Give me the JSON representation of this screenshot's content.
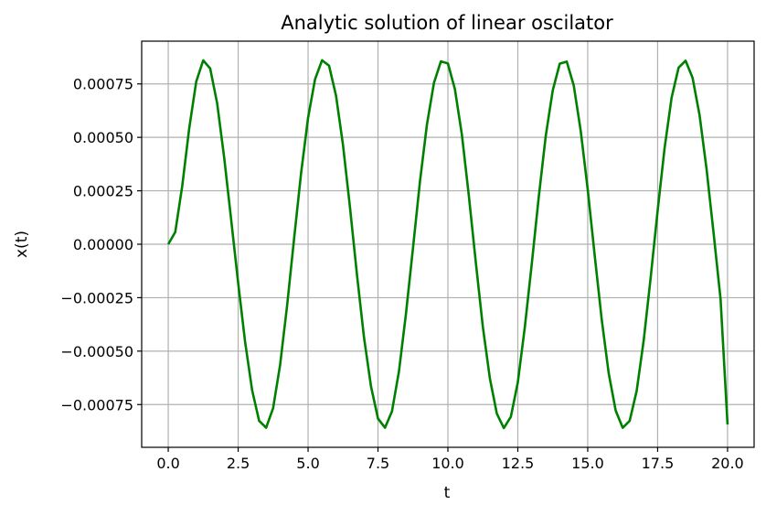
{
  "chart_data": {
    "type": "line",
    "title": "Analytic solution of linear oscilator",
    "xlabel": "t",
    "ylabel": "x(t)",
    "xlim": [
      -0.95,
      20.95
    ],
    "ylim": [
      -0.00095,
      0.00095
    ],
    "xticks": [
      0.0,
      2.5,
      5.0,
      7.5,
      10.0,
      12.5,
      15.0,
      17.5,
      20.0
    ],
    "xtick_labels": [
      "0.0",
      "2.5",
      "5.0",
      "7.5",
      "10.0",
      "12.5",
      "15.0",
      "17.5",
      "20.0"
    ],
    "yticks": [
      0.00075,
      0.0005,
      0.00025,
      0.0,
      -0.00025,
      -0.0005,
      -0.00075
    ],
    "ytick_labels": [
      "0.00075",
      "0.00050",
      "0.00025",
      "0.00000",
      "−0.00025",
      "−0.00050",
      "−0.00075"
    ],
    "grid": true,
    "series": [
      {
        "color": "#008000",
        "x": [
          0.0,
          0.25,
          0.5,
          0.75,
          1.0,
          1.25,
          1.5,
          1.75,
          2.0,
          2.25,
          2.5,
          2.75,
          3.0,
          3.25,
          3.5,
          3.75,
          4.0,
          4.25,
          4.5,
          4.75,
          5.0,
          5.25,
          5.5,
          5.75,
          6.0,
          6.25,
          6.5,
          6.75,
          7.0,
          7.25,
          7.5,
          7.75,
          8.0,
          8.25,
          8.5,
          8.75,
          9.0,
          9.25,
          9.5,
          9.75,
          10.0,
          10.25,
          10.5,
          10.75,
          11.0,
          11.25,
          11.5,
          11.75,
          12.0,
          12.25,
          12.5,
          12.75,
          13.0,
          13.25,
          13.5,
          13.75,
          14.0,
          14.25,
          14.5,
          14.75,
          15.0,
          15.25,
          15.5,
          15.75,
          16.0,
          16.25,
          16.5,
          16.75,
          17.0,
          17.25,
          17.5,
          17.75,
          18.0,
          18.25,
          18.5,
          18.75,
          19.0,
          19.25,
          19.5,
          19.75,
          20.0
        ],
        "y": [
          0.0,
          5.66e-05,
          0.0002722,
          0.0005425,
          0.0007604,
          0.00086,
          0.0008221,
          0.0006583,
          0.0004053,
          0.0001145,
          -0.0001811,
          -0.0004589,
          -0.0006831,
          -0.0008262,
          -0.0008583,
          -0.0007666,
          -0.0005645,
          -0.0002872,
          2.64e-05,
          0.0003322,
          0.0005914,
          0.0007723,
          0.0008606,
          0.0008352,
          0.0006947,
          0.0004634,
          0.0001705,
          -0.0001442,
          -0.0004359,
          -0.0006651,
          -0.0008154,
          -0.0008583,
          -0.0007819,
          -0.0005949,
          -0.0003254,
          -1.97e-05,
          0.0002924,
          0.0005593,
          0.0007541,
          0.0008556,
          0.0008458,
          0.0007255,
          0.0005128,
          0.0002254,
          -8.74e-05,
          -0.0003867,
          -0.0006269,
          -0.0007923,
          -0.0008601,
          -0.0008076,
          -0.0006461,
          -0.0003889,
          -9.08e-05,
          0.0002225,
          0.0005075,
          0.0007204,
          0.0008446,
          0.0008543,
          0.0007429,
          0.0005299,
          0.0002566,
          -5.32e-05,
          -0.0003513,
          -0.0006033,
          -0.0007781,
          -0.0008586,
          -0.0008263,
          -0.0006859,
          -0.0004514,
          -0.0001574,
          0.0001574,
          0.0004514,
          0.0006859,
          0.0008263,
          0.0008586,
          0.0007781,
          0.0006033,
          0.0003513,
          5.32e-05,
          -0.0002566,
          -0.0008433
        ]
      }
    ]
  }
}
